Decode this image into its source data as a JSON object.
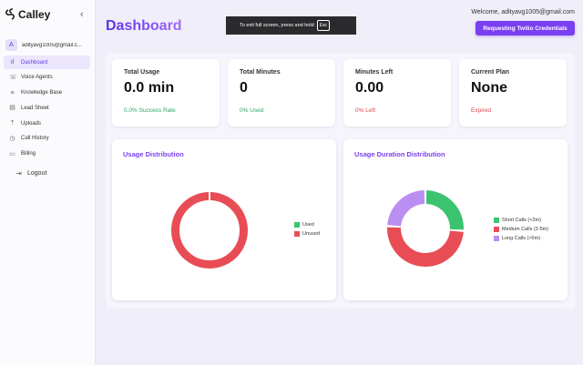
{
  "app": {
    "name": "Calley"
  },
  "sidebar": {
    "user_initial": "A",
    "user_email": "adityavg1005@gmail.c...",
    "items": [
      {
        "label": "Dashboard",
        "icon": "bar-chart-icon",
        "glyph": "ıl",
        "active": true
      },
      {
        "label": "Voice Agents",
        "icon": "phone-icon",
        "glyph": "☏",
        "active": false
      },
      {
        "label": "Knowledge Base",
        "icon": "database-icon",
        "glyph": "≡",
        "active": false
      },
      {
        "label": "Lead Sheet",
        "icon": "sheet-icon",
        "glyph": "▤",
        "active": false
      },
      {
        "label": "Uploads",
        "icon": "upload-icon",
        "glyph": "⇡",
        "active": false
      },
      {
        "label": "Call History",
        "icon": "history-icon",
        "glyph": "◷",
        "active": false
      },
      {
        "label": "Billing",
        "icon": "card-icon",
        "glyph": "▭",
        "active": false
      }
    ],
    "logout_label": "Logout"
  },
  "header": {
    "title": "Dashboard",
    "fullscreen_text": "To exit full screen, press and hold",
    "esc_key": "Esc",
    "welcome": "Welcome, adityavg1005@gmail.com",
    "twilio_button": "Requesting Twilio Credentials"
  },
  "stats": [
    {
      "label": "Total Usage",
      "value": "0.0 min",
      "sub": "0.0% Success Rate",
      "sub_color": "green"
    },
    {
      "label": "Total Minutes",
      "value": "0",
      "sub": "0% Used",
      "sub_color": "green"
    },
    {
      "label": "Minutes Left",
      "value": "0.00",
      "sub": "0% Left",
      "sub_color": "red"
    },
    {
      "label": "Current Plan",
      "value": "None",
      "sub": "Expired",
      "sub_color": "red"
    }
  ],
  "colors": {
    "accent": "#7a3ff0",
    "green": "#3cc36f",
    "red": "#e84d55",
    "purple": "#bb8ef2"
  },
  "chart_data": [
    {
      "type": "pie",
      "title": "Usage Distribution",
      "categories": [
        "Used",
        "Unused"
      ],
      "values": [
        0,
        100
      ],
      "colors": [
        "#3cc36f",
        "#e84d55"
      ],
      "legend": "right"
    },
    {
      "type": "pie",
      "title": "Usage Duration Distribution",
      "categories": [
        "Short Calls (<2m)",
        "Medium Calls (2-5m)",
        "Long Calls (>5m)"
      ],
      "values": [
        26,
        50,
        24
      ],
      "colors": [
        "#3cc36f",
        "#e84d55",
        "#bb8ef2"
      ],
      "legend": "right"
    }
  ]
}
